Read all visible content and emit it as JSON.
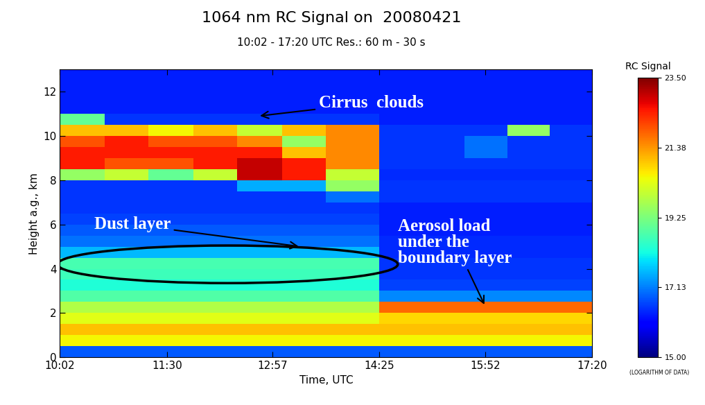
{
  "chart_data": {
    "type": "heatmap",
    "title": "1064 nm RC Signal on  20080421",
    "subtitle": "10:02 - 17:20 UTC Res.: 60 m - 30 s",
    "x_label": "Time, UTC",
    "y_label": "Height a.g., km",
    "xlim": [
      602,
      1040
    ],
    "xticks": [
      {
        "value": 602,
        "label": "10:02"
      },
      {
        "value": 690,
        "label": "11:30"
      },
      {
        "value": 777,
        "label": "12:57"
      },
      {
        "value": 865,
        "label": "14:25"
      },
      {
        "value": 952,
        "label": "15:52"
      },
      {
        "value": 1040,
        "label": "17:20"
      }
    ],
    "ylim": [
      0,
      13
    ],
    "yticks": [
      0,
      2,
      4,
      6,
      8,
      10,
      12
    ],
    "x_edges": [
      602,
      639,
      675,
      712,
      748,
      785,
      821,
      865,
      900,
      935,
      970,
      1005,
      1040
    ],
    "y_edges": [
      0,
      0.5,
      1,
      1.5,
      2,
      2.5,
      3,
      3.5,
      4,
      4.5,
      5,
      5.5,
      6,
      6.5,
      7,
      7.5,
      8,
      8.5,
      9,
      9.5,
      10,
      10.5,
      11,
      11.5,
      12,
      12.5,
      13
    ],
    "cells": [
      [
        16.8,
        16.8,
        16.8,
        16.8,
        16.8,
        16.8,
        16.8,
        16.8,
        16.8,
        16.8,
        16.8,
        16.8
      ],
      [
        20.5,
        20.5,
        20.5,
        20.5,
        20.5,
        20.5,
        20.5,
        20.5,
        20.5,
        20.5,
        20.5,
        20.5
      ],
      [
        21.0,
        21.0,
        21.0,
        21.0,
        21.0,
        21.0,
        21.0,
        21.0,
        21.0,
        21.0,
        21.0,
        21.0
      ],
      [
        20.3,
        20.3,
        20.3,
        20.3,
        20.3,
        20.3,
        20.3,
        20.8,
        20.8,
        20.8,
        20.8,
        20.8
      ],
      [
        19.8,
        19.8,
        19.8,
        19.8,
        19.8,
        19.8,
        19.8,
        21.8,
        21.8,
        21.8,
        21.8,
        21.8
      ],
      [
        18.8,
        18.8,
        18.8,
        18.8,
        18.8,
        18.8,
        18.8,
        17.2,
        17.2,
        17.2,
        17.2,
        17.2
      ],
      [
        18.3,
        18.3,
        18.3,
        18.3,
        18.3,
        18.3,
        18.3,
        16.6,
        16.6,
        16.6,
        16.6,
        16.6
      ],
      [
        18.6,
        18.6,
        18.6,
        18.6,
        18.6,
        18.6,
        18.6,
        16.5,
        16.5,
        16.5,
        16.5,
        16.5
      ],
      [
        18.7,
        18.7,
        18.7,
        18.7,
        18.7,
        18.7,
        18.7,
        16.5,
        16.5,
        16.5,
        16.5,
        16.5
      ],
      [
        17.6,
        17.6,
        17.6,
        17.6,
        17.6,
        17.6,
        17.6,
        16.4,
        16.4,
        16.4,
        16.4,
        16.4
      ],
      [
        17.0,
        17.0,
        17.0,
        17.0,
        17.0,
        17.0,
        17.0,
        16.4,
        16.4,
        16.4,
        16.4,
        16.4
      ],
      [
        16.8,
        16.8,
        16.8,
        16.8,
        16.8,
        16.8,
        16.8,
        16.3,
        16.3,
        16.3,
        16.3,
        16.3
      ],
      [
        16.6,
        16.6,
        16.6,
        16.6,
        16.6,
        16.6,
        16.6,
        16.3,
        16.3,
        16.3,
        16.3,
        16.3
      ],
      [
        16.5,
        16.5,
        16.5,
        16.5,
        16.5,
        16.5,
        16.5,
        16.3,
        16.3,
        16.3,
        16.3,
        16.3
      ],
      [
        16.5,
        16.5,
        16.5,
        16.5,
        16.5,
        16.5,
        17.0,
        16.5,
        16.5,
        16.5,
        16.5,
        16.5
      ],
      [
        16.5,
        16.5,
        16.5,
        16.5,
        17.5,
        17.5,
        19.5,
        16.5,
        16.5,
        16.5,
        16.5,
        16.5
      ],
      [
        19.5,
        20.0,
        19.0,
        20.0,
        23.0,
        22.5,
        20.0,
        16.4,
        16.4,
        16.4,
        16.4,
        16.4
      ],
      [
        22.5,
        22.0,
        22.0,
        22.5,
        23.0,
        22.5,
        21.5,
        16.5,
        16.5,
        16.5,
        16.5,
        16.5
      ],
      [
        22.5,
        22.5,
        22.5,
        22.5,
        22.5,
        21.0,
        21.5,
        16.5,
        16.5,
        17.0,
        16.5,
        16.5
      ],
      [
        22.0,
        22.5,
        22.0,
        22.0,
        21.5,
        19.5,
        21.5,
        16.5,
        16.5,
        17.0,
        16.5,
        16.5
      ],
      [
        21.0,
        21.0,
        20.5,
        21.0,
        20.0,
        21.0,
        21.5,
        16.5,
        16.5,
        16.5,
        19.5,
        16.5
      ],
      [
        19.0,
        16.5,
        16.5,
        16.5,
        16.5,
        16.5,
        16.5,
        16.3,
        16.3,
        16.3,
        16.3,
        16.3
      ],
      [
        16.3,
        16.3,
        16.3,
        16.3,
        16.3,
        16.3,
        16.3,
        16.3,
        16.3,
        16.3,
        16.3,
        16.3
      ],
      [
        16.3,
        16.3,
        16.3,
        16.3,
        16.3,
        16.3,
        16.3,
        16.3,
        16.3,
        16.3,
        16.3,
        16.3
      ],
      [
        16.3,
        16.3,
        16.3,
        16.3,
        16.3,
        16.3,
        16.3,
        16.3,
        16.3,
        16.3,
        16.3,
        16.3
      ],
      [
        16.3,
        16.3,
        16.3,
        16.3,
        16.3,
        16.3,
        16.3,
        16.3,
        16.3,
        16.3,
        16.3,
        16.3
      ]
    ],
    "colorbar": {
      "title": "RC Signal",
      "note": "(LOGARITHM OF DATA)",
      "range": [
        15,
        23.5
      ],
      "ticks": [
        {
          "value": 15,
          "label": "15.00"
        },
        {
          "value": 17.13,
          "label": "17.13"
        },
        {
          "value": 19.25,
          "label": "19.25"
        },
        {
          "value": 21.38,
          "label": "21.38"
        },
        {
          "value": 23.5,
          "label": "23.50"
        }
      ]
    },
    "annotations": [
      {
        "text": "Cirrus  clouds"
      },
      {
        "text": "Dust layer"
      },
      {
        "text": "Aerosol load\nunder the\nboundary layer"
      }
    ]
  }
}
